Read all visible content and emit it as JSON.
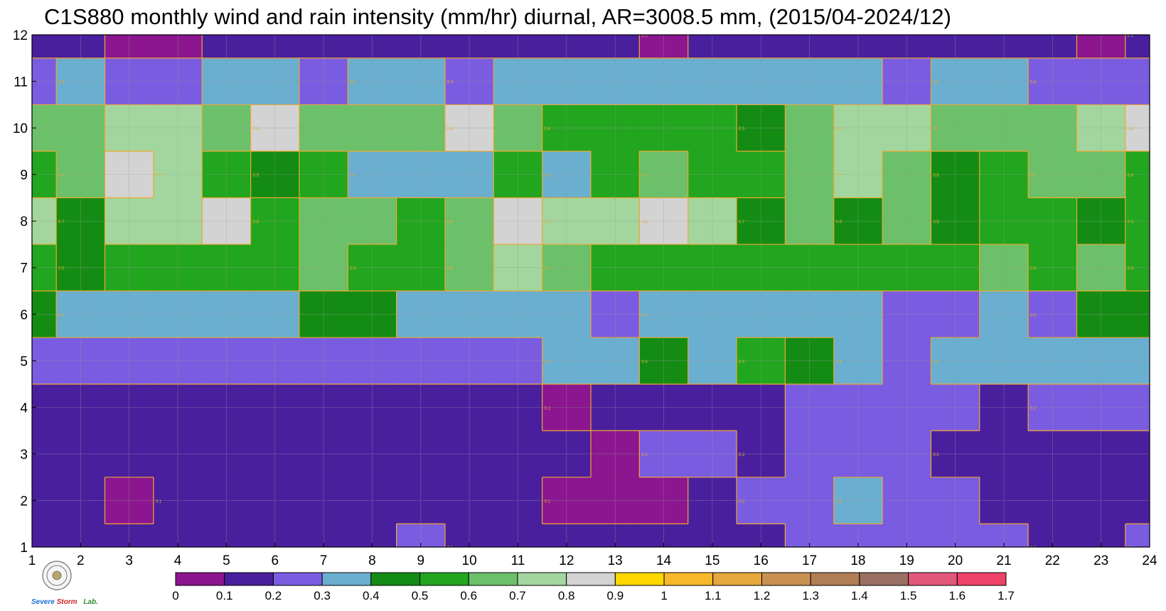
{
  "chart_data": {
    "type": "heatmap",
    "title": "C1S880 monthly wind and rain intensity (mm/hr) diurnal, AR=3008.5 mm, (2015/04-2024/12)",
    "xlabel": "",
    "ylabel": "",
    "x": [
      1,
      2,
      3,
      4,
      5,
      6,
      7,
      8,
      9,
      10,
      11,
      12,
      13,
      14,
      15,
      16,
      17,
      18,
      19,
      20,
      21,
      22,
      23,
      24
    ],
    "y": [
      1,
      2,
      3,
      4,
      5,
      6,
      7,
      8,
      9,
      10,
      11,
      12
    ],
    "xlim": [
      1,
      24
    ],
    "ylim": [
      1,
      12
    ],
    "grid": true,
    "values": [
      [
        0.15,
        0.15,
        0.15,
        0.15,
        0.15,
        0.15,
        0.15,
        0.15,
        0.25,
        0.15,
        0.15,
        0.15,
        0.15,
        0.15,
        0.15,
        0.15,
        0.25,
        0.25,
        0.25,
        0.25,
        0.25,
        0.15,
        0.15,
        0.25
      ],
      [
        0.15,
        0.15,
        0.08,
        0.15,
        0.15,
        0.15,
        0.15,
        0.15,
        0.15,
        0.15,
        0.15,
        0.08,
        0.08,
        0.08,
        0.15,
        0.25,
        0.25,
        0.35,
        0.25,
        0.25,
        0.15,
        0.15,
        0.15,
        0.15
      ],
      [
        0.15,
        0.15,
        0.15,
        0.15,
        0.15,
        0.15,
        0.15,
        0.15,
        0.15,
        0.15,
        0.15,
        0.15,
        0.08,
        0.25,
        0.25,
        0.15,
        0.25,
        0.25,
        0.25,
        0.15,
        0.15,
        0.15,
        0.15,
        0.15
      ],
      [
        0.15,
        0.15,
        0.15,
        0.15,
        0.15,
        0.15,
        0.15,
        0.15,
        0.15,
        0.15,
        0.15,
        0.08,
        0.15,
        0.15,
        0.15,
        0.15,
        0.25,
        0.25,
        0.25,
        0.25,
        0.15,
        0.25,
        0.25,
        0.25
      ],
      [
        0.25,
        0.25,
        0.25,
        0.25,
        0.25,
        0.25,
        0.25,
        0.25,
        0.25,
        0.25,
        0.25,
        0.35,
        0.35,
        0.45,
        0.35,
        0.55,
        0.45,
        0.35,
        0.25,
        0.35,
        0.35,
        0.35,
        0.35,
        0.35
      ],
      [
        0.45,
        0.35,
        0.35,
        0.35,
        0.35,
        0.35,
        0.45,
        0.45,
        0.35,
        0.35,
        0.35,
        0.35,
        0.25,
        0.35,
        0.35,
        0.35,
        0.35,
        0.35,
        0.25,
        0.25,
        0.35,
        0.25,
        0.45,
        0.45
      ],
      [
        0.55,
        0.45,
        0.55,
        0.55,
        0.55,
        0.55,
        0.65,
        0.55,
        0.55,
        0.65,
        0.75,
        0.65,
        0.55,
        0.55,
        0.55,
        0.55,
        0.55,
        0.55,
        0.55,
        0.55,
        0.65,
        0.55,
        0.65,
        0.55
      ],
      [
        0.75,
        0.45,
        0.75,
        0.75,
        0.85,
        0.55,
        0.65,
        0.65,
        0.55,
        0.65,
        0.85,
        0.75,
        0.75,
        0.85,
        0.75,
        0.45,
        0.65,
        0.45,
        0.65,
        0.45,
        0.55,
        0.55,
        0.45,
        0.55
      ],
      [
        0.55,
        0.65,
        0.85,
        0.75,
        0.55,
        0.45,
        0.55,
        0.35,
        0.35,
        0.35,
        0.55,
        0.35,
        0.55,
        0.65,
        0.55,
        0.55,
        0.65,
        0.75,
        0.65,
        0.45,
        0.55,
        0.65,
        0.65,
        0.55
      ],
      [
        0.65,
        0.65,
        0.75,
        0.75,
        0.65,
        0.85,
        0.65,
        0.65,
        0.65,
        0.85,
        0.65,
        0.55,
        0.55,
        0.55,
        0.55,
        0.45,
        0.65,
        0.75,
        0.75,
        0.65,
        0.65,
        0.65,
        0.75,
        0.85
      ],
      [
        0.25,
        0.35,
        0.25,
        0.25,
        0.35,
        0.35,
        0.25,
        0.35,
        0.35,
        0.25,
        0.35,
        0.35,
        0.35,
        0.35,
        0.35,
        0.35,
        0.35,
        0.35,
        0.25,
        0.35,
        0.35,
        0.25,
        0.25,
        0.25
      ],
      [
        0.15,
        0.15,
        0.08,
        0.08,
        0.15,
        0.15,
        0.15,
        0.15,
        0.15,
        0.15,
        0.15,
        0.15,
        0.15,
        0.08,
        0.15,
        0.15,
        0.15,
        0.15,
        0.15,
        0.15,
        0.15,
        0.15,
        0.08,
        0.15
      ]
    ],
    "contour_labels": [
      "0.1",
      "0.2",
      "0.3",
      "0.4",
      "0.5",
      "0.6",
      "0.7",
      "0.8",
      "0.9"
    ],
    "colorbar": {
      "levels": [
        0,
        0.1,
        0.2,
        0.3,
        0.4,
        0.5,
        0.6,
        0.7,
        0.8,
        0.9,
        1,
        1.1,
        1.2,
        1.3,
        1.4,
        1.5,
        1.6,
        1.7
      ],
      "labels": [
        "0",
        "0.1",
        "0.2",
        "0.3",
        "0.4",
        "0.5",
        "0.6",
        "0.7",
        "0.8",
        "0.9",
        "1",
        "1.1",
        "1.2",
        "1.3",
        "1.4",
        "1.5",
        "1.6",
        "1.7"
      ],
      "colors": [
        "#8b168f",
        "#4a1f9e",
        "#7a5ce0",
        "#6aaed0",
        "#148c14",
        "#22a51f",
        "#6cc06a",
        "#a3d69e",
        "#d3d3d3",
        "#ffd700",
        "#f8b82b",
        "#e4a83d",
        "#c89150",
        "#b07d55",
        "#9a6f63",
        "#e2587a",
        "#ee4268",
        "#d7263e"
      ]
    },
    "contour_line_color": "#f0a830"
  },
  "logo": {
    "text_severe": "Severe",
    "text_storm": "Storm",
    "text_lab": "Lab."
  }
}
